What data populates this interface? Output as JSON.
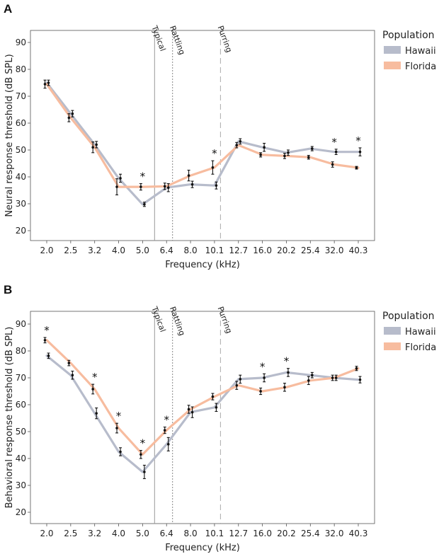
{
  "legend": {
    "title": "Population",
    "entries": [
      {
        "name": "Hawaii",
        "color": "#b7bccb"
      },
      {
        "name": "Florida",
        "color": "#f7bc9f"
      }
    ]
  },
  "chart_data": [
    {
      "panel": "A",
      "type": "line",
      "xlabel": "Frequency (kHz)",
      "ylabel": "Neural response threshold (dB SPL)",
      "categories": [
        "2.0",
        "2.5",
        "3.2",
        "4.0",
        "5.0",
        "6.4",
        "8.0",
        "10.1",
        "12.7",
        "16.0",
        "20.2",
        "25.4",
        "32.0",
        "40.3"
      ],
      "ylim": [
        16,
        95
      ],
      "yticks": [
        20,
        30,
        40,
        50,
        60,
        70,
        80,
        90
      ],
      "markers": [
        {
          "label": "Typical",
          "position": 4.5,
          "style": "solid"
        },
        {
          "label": "Rattling",
          "position": 5.25,
          "style": "dotted"
        },
        {
          "label": "Purring",
          "position": 7.25,
          "style": "dashed"
        }
      ],
      "series": [
        {
          "name": "Hawaii",
          "color": "#b7bccb",
          "values": [
            75.0,
            63.5,
            52.0,
            39.5,
            29.8,
            36.0,
            37.2,
            36.8,
            53.2,
            51.0,
            49.0,
            50.5,
            49.3,
            49.3
          ],
          "errors": [
            1.0,
            1.2,
            1.2,
            1.5,
            0.8,
            1.5,
            1.2,
            1.3,
            1.0,
            1.5,
            1.0,
            0.8,
            1.0,
            1.5
          ]
        },
        {
          "name": "Florida",
          "color": "#f7bc9f",
          "values": [
            74.5,
            62.0,
            51.0,
            36.3,
            36.3,
            36.5,
            40.5,
            43.5,
            51.8,
            48.2,
            47.8,
            47.3,
            44.6,
            43.4
          ],
          "errors": [
            1.5,
            1.5,
            2.0,
            3.0,
            1.2,
            1.2,
            2.0,
            2.5,
            1.0,
            0.8,
            1.0,
            0.7,
            1.0,
            0.5
          ]
        }
      ],
      "significance": [
        {
          "category": "5.0",
          "label": "*"
        },
        {
          "category": "10.1",
          "label": "*"
        },
        {
          "category": "32.0",
          "label": "*"
        },
        {
          "category": "40.3",
          "label": "*"
        }
      ]
    },
    {
      "panel": "B",
      "type": "line",
      "xlabel": "Frequency (kHz)",
      "ylabel": "Behavioral response threshold (dB SPL)",
      "categories": [
        "2.0",
        "2.5",
        "3.2",
        "4.0",
        "5.0",
        "6.4",
        "8.0",
        "10.1",
        "12.7",
        "16.0",
        "20.2",
        "25.4",
        "32.0",
        "40.3"
      ],
      "ylim": [
        16,
        92
      ],
      "yticks": [
        20,
        30,
        40,
        50,
        60,
        70,
        80,
        90
      ],
      "markers": [
        {
          "label": "Typical",
          "position": 4.5,
          "style": "solid"
        },
        {
          "label": "Rattling",
          "position": 5.25,
          "style": "dotted"
        },
        {
          "label": "Purring",
          "position": 7.25,
          "style": "dashed"
        }
      ],
      "series": [
        {
          "name": "Hawaii",
          "color": "#b7bccb",
          "values": [
            78.2,
            71.0,
            56.8,
            42.5,
            35.0,
            45.3,
            57.2,
            59.0,
            69.5,
            70.0,
            72.0,
            71.0,
            70.0,
            69.3
          ],
          "errors": [
            1.0,
            1.5,
            2.0,
            1.5,
            2.5,
            2.5,
            2.0,
            1.5,
            1.5,
            1.5,
            1.5,
            1.0,
            1.0,
            1.2
          ]
        },
        {
          "name": "Florida",
          "color": "#f7bc9f",
          "values": [
            84.0,
            75.5,
            65.8,
            51.3,
            41.5,
            50.5,
            58.3,
            63.0,
            67.2,
            65.0,
            66.5,
            69.0,
            70.0,
            73.5
          ],
          "errors": [
            1.0,
            1.0,
            1.8,
            1.8,
            1.5,
            1.2,
            1.5,
            1.2,
            1.5,
            1.2,
            1.5,
            1.5,
            1.0,
            0.8
          ]
        }
      ],
      "significance": [
        {
          "category": "2.0",
          "label": "*"
        },
        {
          "category": "3.2",
          "label": "*"
        },
        {
          "category": "4.0",
          "label": "*"
        },
        {
          "category": "5.0",
          "label": "*"
        },
        {
          "category": "6.4",
          "label": "*"
        },
        {
          "category": "16.0",
          "label": "*"
        },
        {
          "category": "20.2",
          "label": "*"
        }
      ]
    }
  ]
}
